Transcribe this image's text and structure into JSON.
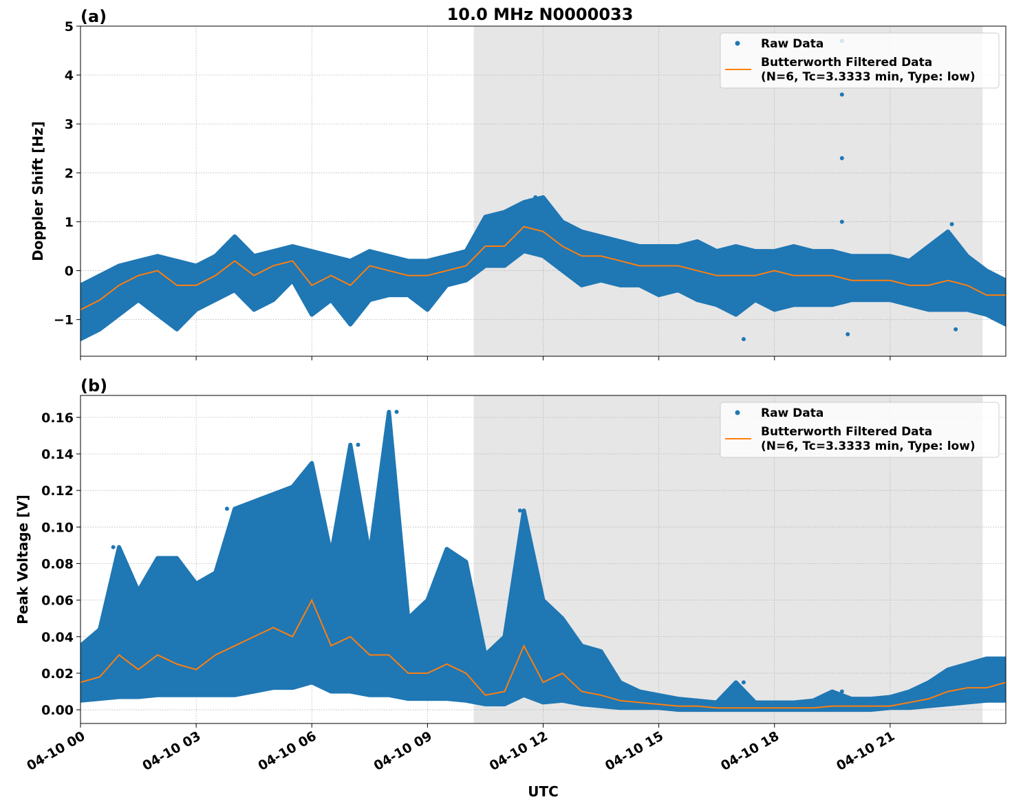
{
  "figure_title": "10.0 MHz N0000033",
  "colors": {
    "raw": "#1f77b4",
    "filtered": "#ff7f0e",
    "shade": "#e6e6e6"
  },
  "chart_data": [
    {
      "type": "scatter",
      "panel_label": "(a)",
      "ylabel": "Doppler Shift [Hz]",
      "xlabel": "",
      "xlim_hours_utc": [
        0,
        24
      ],
      "ylim": [
        -1.75,
        5
      ],
      "yticks": [
        -1,
        0,
        1,
        2,
        3,
        4,
        5
      ],
      "ytick_labels": [
        "−1",
        "0",
        "1",
        "2",
        "3",
        "4",
        "5"
      ],
      "grid": true,
      "legend_placement": "upper-right",
      "shaded_interval_hours": [
        10.2,
        23.4
      ],
      "x_hours": [
        0,
        0.5,
        1,
        1.5,
        2,
        2.5,
        3,
        3.5,
        4,
        4.5,
        5,
        5.5,
        6,
        6.5,
        7,
        7.5,
        8,
        8.5,
        9,
        9.5,
        10,
        10.5,
        11,
        11.5,
        12,
        12.5,
        13,
        13.5,
        14,
        14.5,
        15,
        15.5,
        16,
        16.5,
        17,
        17.5,
        18,
        18.5,
        19,
        19.5,
        20,
        20.5,
        21,
        21.5,
        22,
        22.5,
        23,
        23.5,
        24
      ],
      "series": [
        {
          "name": "Butterworth Filtered Data",
          "name_line2": "(N=6, Tc=3.3333 min, Type: low)",
          "kind": "line",
          "values": [
            -0.8,
            -0.6,
            -0.3,
            -0.1,
            0.0,
            -0.3,
            -0.3,
            -0.1,
            0.2,
            -0.1,
            0.1,
            0.2,
            -0.3,
            -0.1,
            -0.3,
            0.1,
            0.0,
            -0.1,
            -0.1,
            0.0,
            0.1,
            0.5,
            0.5,
            0.9,
            0.8,
            0.5,
            0.3,
            0.3,
            0.2,
            0.1,
            0.1,
            0.1,
            0.0,
            -0.1,
            -0.1,
            -0.1,
            0.0,
            -0.1,
            -0.1,
            -0.1,
            -0.2,
            -0.2,
            -0.2,
            -0.3,
            -0.3,
            -0.2,
            -0.3,
            -0.5,
            -0.5
          ]
        },
        {
          "name": "Raw Data",
          "kind": "scatter-envelope",
          "low": [
            -1.4,
            -1.2,
            -0.9,
            -0.6,
            -0.9,
            -1.2,
            -0.8,
            -0.6,
            -0.4,
            -0.8,
            -0.6,
            -0.2,
            -0.9,
            -0.6,
            -1.1,
            -0.6,
            -0.5,
            -0.5,
            -0.8,
            -0.3,
            -0.2,
            0.1,
            0.1,
            0.4,
            0.3,
            0.0,
            -0.3,
            -0.2,
            -0.3,
            -0.3,
            -0.5,
            -0.4,
            -0.6,
            -0.7,
            -0.9,
            -0.6,
            -0.8,
            -0.7,
            -0.7,
            -0.7,
            -0.6,
            -0.6,
            -0.6,
            -0.7,
            -0.8,
            -0.8,
            -0.8,
            -0.9,
            -1.1
          ],
          "high": [
            -0.3,
            -0.1,
            0.1,
            0.2,
            0.3,
            0.2,
            0.1,
            0.3,
            0.7,
            0.3,
            0.4,
            0.5,
            0.4,
            0.3,
            0.2,
            0.4,
            0.3,
            0.2,
            0.2,
            0.3,
            0.4,
            1.1,
            1.2,
            1.4,
            1.5,
            1.0,
            0.8,
            0.7,
            0.6,
            0.5,
            0.5,
            0.5,
            0.6,
            0.4,
            0.5,
            0.4,
            0.4,
            0.5,
            0.4,
            0.4,
            0.3,
            0.3,
            0.3,
            0.2,
            0.5,
            0.8,
            0.3,
            0.0,
            -0.2
          ],
          "outliers": [
            [
              19.75,
              4.7
            ],
            [
              19.75,
              3.6
            ],
            [
              19.75,
              2.3
            ],
            [
              19.75,
              1.0
            ],
            [
              17.2,
              -1.4
            ],
            [
              19.9,
              -1.3
            ],
            [
              22.7,
              -1.2
            ],
            [
              22.6,
              0.95
            ],
            [
              11.8,
              1.5
            ]
          ]
        }
      ]
    },
    {
      "type": "scatter",
      "panel_label": "(b)",
      "ylabel": "Peak Voltage [V]",
      "xlabel": "UTC",
      "xlim_hours_utc": [
        0,
        24
      ],
      "ylim": [
        -0.0075,
        0.172
      ],
      "yticks": [
        0,
        0.02,
        0.04,
        0.06,
        0.08,
        0.1,
        0.12,
        0.14,
        0.16
      ],
      "ytick_labels": [
        "0.00",
        "0.02",
        "0.04",
        "0.06",
        "0.08",
        "0.10",
        "0.12",
        "0.14",
        "0.16"
      ],
      "xticks_hours": [
        0,
        3,
        6,
        9,
        12,
        15,
        18,
        21
      ],
      "xtick_labels": [
        "04-10 00",
        "04-10 03",
        "04-10 06",
        "04-10 09",
        "04-10 12",
        "04-10 15",
        "04-10 18",
        "04-10 21"
      ],
      "grid": true,
      "legend_placement": "upper-right",
      "shaded_interval_hours": [
        10.2,
        23.4
      ],
      "x_hours": [
        0,
        0.5,
        1,
        1.5,
        2,
        2.5,
        3,
        3.5,
        4,
        4.5,
        5,
        5.5,
        6,
        6.5,
        7,
        7.5,
        8,
        8.5,
        9,
        9.5,
        10,
        10.5,
        11,
        11.5,
        12,
        12.5,
        13,
        13.5,
        14,
        14.5,
        15,
        15.5,
        16,
        16.5,
        17,
        17.5,
        18,
        18.5,
        19,
        19.5,
        20,
        20.5,
        21,
        21.5,
        22,
        22.5,
        23,
        23.5,
        24
      ],
      "series": [
        {
          "name": "Butterworth Filtered Data",
          "name_line2": "(N=6, Tc=3.3333 min, Type: low)",
          "kind": "line",
          "values": [
            0.015,
            0.018,
            0.03,
            0.022,
            0.03,
            0.025,
            0.022,
            0.03,
            0.035,
            0.04,
            0.045,
            0.04,
            0.06,
            0.035,
            0.04,
            0.03,
            0.03,
            0.02,
            0.02,
            0.025,
            0.02,
            0.008,
            0.01,
            0.035,
            0.015,
            0.02,
            0.01,
            0.008,
            0.005,
            0.004,
            0.003,
            0.002,
            0.002,
            0.001,
            0.001,
            0.001,
            0.001,
            0.001,
            0.001,
            0.002,
            0.002,
            0.002,
            0.002,
            0.004,
            0.006,
            0.01,
            0.012,
            0.012,
            0.015
          ]
        },
        {
          "name": "Raw Data",
          "kind": "scatter-envelope",
          "low": [
            0.005,
            0.006,
            0.007,
            0.007,
            0.008,
            0.008,
            0.008,
            0.008,
            0.008,
            0.01,
            0.012,
            0.012,
            0.015,
            0.01,
            0.01,
            0.008,
            0.008,
            0.006,
            0.006,
            0.006,
            0.005,
            0.003,
            0.003,
            0.008,
            0.004,
            0.005,
            0.003,
            0.002,
            0.001,
            0.001,
            0.001,
            0.0,
            0.0,
            0.0,
            0.0,
            0.0,
            0.0,
            0.0,
            0.0,
            0.0,
            0.0,
            0.0,
            0.001,
            0.001,
            0.002,
            0.003,
            0.004,
            0.005,
            0.005
          ],
          "high": [
            0.035,
            0.044,
            0.089,
            0.065,
            0.083,
            0.083,
            0.069,
            0.075,
            0.11,
            0.114,
            0.118,
            0.122,
            0.135,
            0.085,
            0.145,
            0.085,
            0.163,
            0.05,
            0.06,
            0.088,
            0.081,
            0.03,
            0.04,
            0.109,
            0.06,
            0.05,
            0.035,
            0.032,
            0.015,
            0.01,
            0.008,
            0.006,
            0.005,
            0.004,
            0.015,
            0.004,
            0.004,
            0.004,
            0.005,
            0.01,
            0.006,
            0.006,
            0.007,
            0.01,
            0.015,
            0.022,
            0.025,
            0.028,
            0.028
          ],
          "outliers": [
            [
              0.85,
              0.089
            ],
            [
              3.8,
              0.11
            ],
            [
              7.2,
              0.145
            ],
            [
              8.2,
              0.163
            ],
            [
              11.4,
              0.109
            ],
            [
              17.2,
              0.015
            ],
            [
              19.75,
              0.01
            ]
          ]
        }
      ]
    }
  ]
}
